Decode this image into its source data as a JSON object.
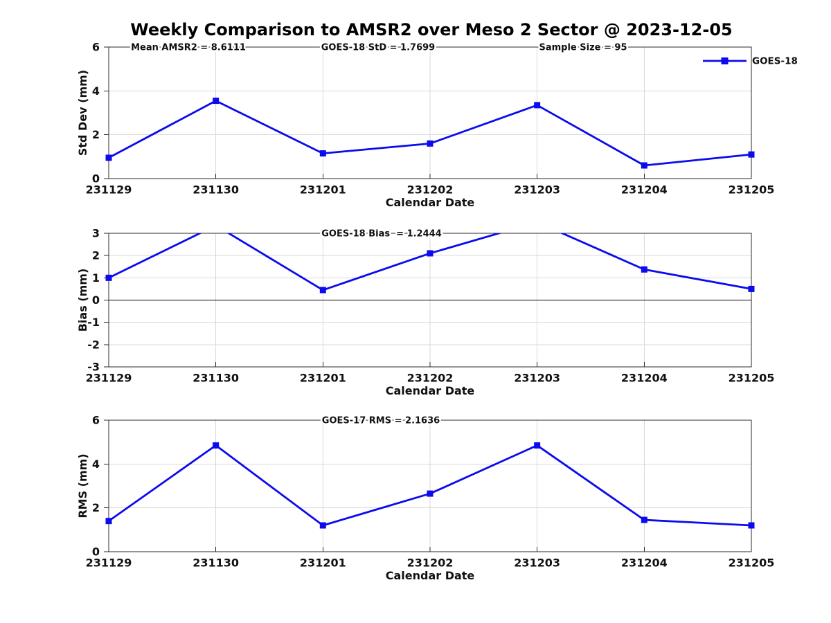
{
  "title": "Weekly Comparison to AMSR2 over Meso 2 Sector @ 2023-12-05",
  "colors": {
    "line": "#0b0bee",
    "marker": "#0b0bee",
    "grid": "#d9d9d9",
    "axis": "#2b2b2b",
    "zero_line": "#000000",
    "text": "#111111"
  },
  "chart_data": [
    {
      "type": "line",
      "categories": [
        "231129",
        "231130",
        "231201",
        "231202",
        "231203",
        "231204",
        "231205"
      ],
      "series": [
        {
          "name": "GOES-18",
          "marker": "square",
          "values": [
            0.95,
            3.55,
            1.15,
            1.6,
            3.35,
            0.6,
            1.1
          ]
        }
      ],
      "ylabel": "Std Dev (mm)",
      "xlabel": "Calendar Date",
      "ylim": [
        0,
        6
      ],
      "yticks": [
        0,
        2,
        4,
        6
      ],
      "grid": true,
      "annotations": [
        "Mean AMSR2 = 8.6111",
        "GOES-18 StD = 1.7699",
        "Sample Size = 95"
      ],
      "legend": {
        "label": "GOES-18",
        "position": "northeast"
      }
    },
    {
      "type": "line",
      "categories": [
        "231129",
        "231130",
        "231201",
        "231202",
        "231203",
        "231204",
        "231205"
      ],
      "series": [
        {
          "name": "GOES-18",
          "marker": "square",
          "values": [
            1.0,
            3.35,
            0.45,
            2.1,
            3.5,
            1.375,
            0.5
          ]
        }
      ],
      "ylabel": "Bias (mm)",
      "xlabel": "Calendar Date",
      "ylim": [
        -3,
        3
      ],
      "yticks": [
        -3,
        -2,
        -1,
        0,
        1,
        2,
        3
      ],
      "grid": true,
      "zero_line": true,
      "annotations": [
        "GOES-18 Bias  = 1.2444"
      ]
    },
    {
      "type": "line",
      "categories": [
        "231129",
        "231130",
        "231201",
        "231202",
        "231203",
        "231204",
        "231205"
      ],
      "series": [
        {
          "name": "GOES-18",
          "marker": "square",
          "values": [
            1.4,
            4.85,
            1.2,
            2.65,
            4.85,
            1.45,
            1.2
          ]
        }
      ],
      "ylabel": "RMS (mm)",
      "xlabel": "Calendar Date",
      "ylim": [
        0,
        6
      ],
      "yticks": [
        0,
        2,
        4,
        6
      ],
      "grid": true,
      "annotations": [
        "GOES-17 RMS = 2.1636"
      ]
    }
  ]
}
